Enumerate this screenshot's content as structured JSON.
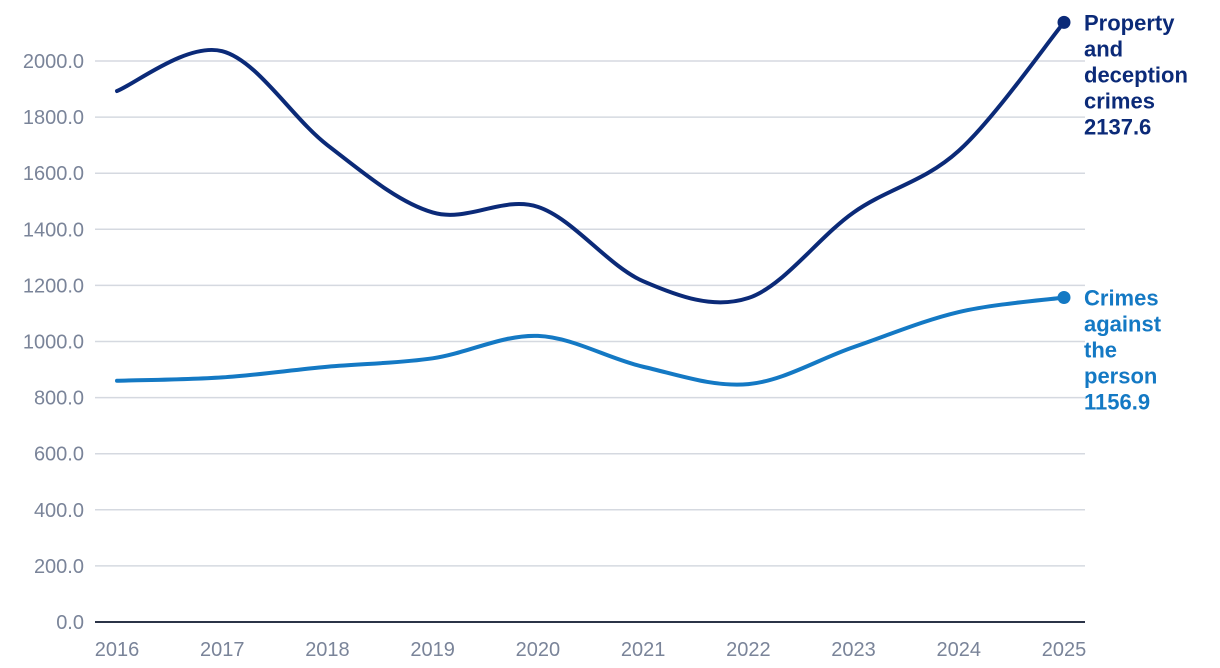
{
  "chart_data": {
    "type": "line",
    "x": [
      "2016",
      "2017",
      "2018",
      "2019",
      "2020",
      "2021",
      "2022",
      "2023",
      "2024",
      "2025"
    ],
    "ylim": [
      0,
      2137.6
    ],
    "yticks": [
      "0.0",
      "200.0",
      "400.0",
      "600.0",
      "800.0",
      "1000.0",
      "1200.0",
      "1400.0",
      "1600.0",
      "1800.0",
      "2000.0"
    ],
    "grid": true,
    "legend": "end-of-line labels",
    "series": [
      {
        "name": "Property and deception crimes",
        "label_lines": [
          "Property",
          "and",
          "deception",
          "crimes",
          "2137.6"
        ],
        "color": "#0b2a78",
        "values": [
          1893,
          2035,
          1700,
          1460,
          1480,
          1215,
          1155,
          1460,
          1680,
          2137.6
        ]
      },
      {
        "name": "Crimes against the person",
        "label_lines": [
          "Crimes",
          "against",
          "the",
          "person",
          "1156.9"
        ],
        "color": "#1479c4",
        "values": [
          860,
          872,
          910,
          940,
          1020,
          910,
          848,
          980,
          1105,
          1156.9
        ]
      }
    ],
    "colors": {
      "grid": "#d5d9e0",
      "axis": "#2b3447",
      "tick_text": "#7a8499"
    }
  }
}
